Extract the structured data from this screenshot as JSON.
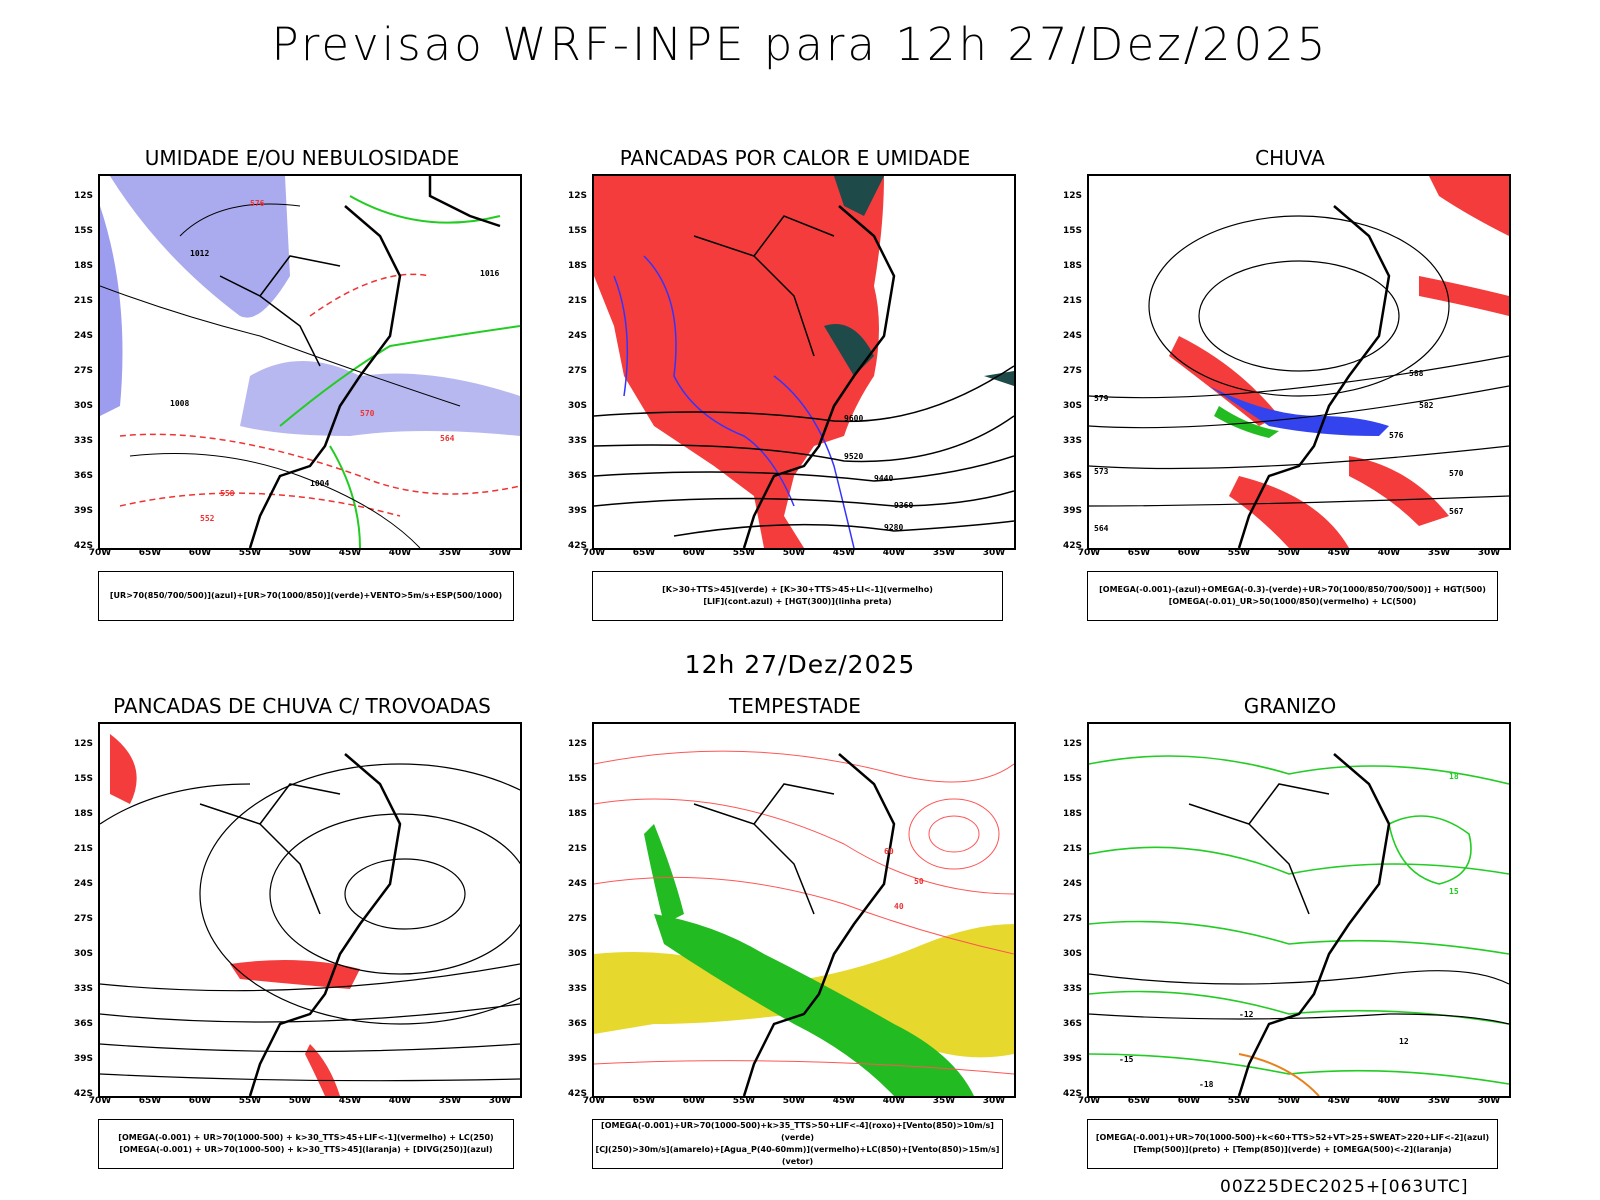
{
  "header": {
    "title": "Previsao WRF-INPE  para 12h 27/Dez/2025",
    "subtitle": "12h 27/Dez/2025",
    "footer": "00Z25DEC2025+[063UTC]"
  },
  "axes": {
    "lat_labels": [
      "12S",
      "15S",
      "18S",
      "21S",
      "24S",
      "27S",
      "30S",
      "33S",
      "36S",
      "39S",
      "42S"
    ],
    "lon_labels": [
      "70W",
      "65W",
      "60W",
      "55W",
      "50W",
      "45W",
      "40W",
      "35W",
      "30W"
    ]
  },
  "panels": [
    {
      "title": "UMIDADE E/OU NEBULOSIDADE",
      "legend": [
        "[UR>70(850/700/500)](azul)+[UR>70(1000/850)](verde)+VENTO>5m/s+ESP(500/1000)"
      ],
      "contour_labels": [
        "1012",
        "1016",
        "1008",
        "1004",
        "576",
        "570",
        "564",
        "558",
        "552"
      ]
    },
    {
      "title": "PANCADAS POR CALOR E UMIDADE",
      "legend": [
        "[K>30+TTS>45](verde) + [K>30+TTS>45+LI<-1](vermelho)",
        "[LIF](cont.azul) + [HGT(300)](linha preta)"
      ],
      "contour_labels": [
        "9600",
        "9520",
        "9440",
        "9360",
        "9280"
      ]
    },
    {
      "title": "CHUVA",
      "legend": [
        "[OMEGA(-0.001)-(azul)+OMEGA(-0.3)-(verde)+UR>70(1000/850/700/500)] + HGT(500)",
        "[OMEGA(-0.01)_UR>50(1000/850)(vermelho) + LC(500)"
      ],
      "contour_labels": [
        "588",
        "582",
        "579",
        "576",
        "573",
        "570",
        "567",
        "564"
      ]
    },
    {
      "title": "PANCADAS DE CHUVA C/ TROVOADAS",
      "legend": [
        "[OMEGA(-0.001) + UR>70(1000-500) + k>30_TTS>45+LIF<-1](vermelho) + LC(250)",
        "[OMEGA(-0.001) + UR>70(1000-500) + k>30_TTS>45](laranja) + [DIVG(250)](azul)"
      ],
      "contour_labels": []
    },
    {
      "title": "TEMPESTADE",
      "legend": [
        "[OMEGA(-0.001)+UR>70(1000-500)+k>35_TTS>50+LIF<-4](roxo)+[Vento(850)>10m/s](verde)",
        "[CJ(250)>30m/s](amarelo)+[Agua_P(40-60mm)](vermelho)+LC(850)+[Vento(850)>15m/s](vetor)"
      ],
      "contour_labels": [
        "40",
        "50",
        "60"
      ]
    },
    {
      "title": "GRANIZO",
      "legend": [
        "[OMEGA(-0.001)+UR>70(1000-500)+k<60+TTS>52+VT>25+SWEAT>220+LIF<-2](azul)",
        "[Temp(500)](preto) + [Temp(850)](verde) + [OMEGA(500)<-2](laranja)"
      ],
      "contour_labels": [
        "-12",
        "-15",
        "-18",
        "12",
        "15",
        "18"
      ]
    }
  ]
}
